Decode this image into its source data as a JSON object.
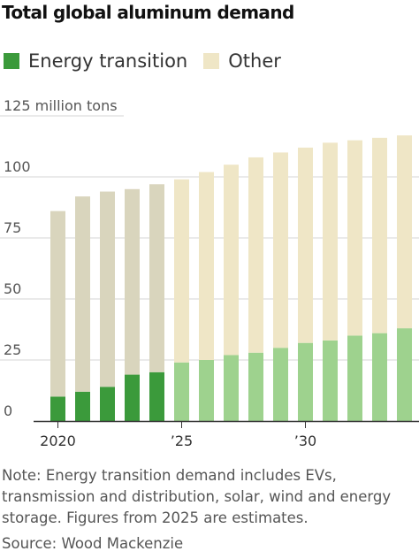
{
  "title": "Total global aluminum demand",
  "legend": {
    "energy_label": "Energy transition",
    "other_label": "Other"
  },
  "note": "Note: Energy transition demand includes EVs, transmission and distribution, solar, wind and energy storage. Figures from 2025 are estimates.",
  "source": "Source: Wood Mackenzie",
  "colors": {
    "energy_actual": "#3b9a3b",
    "energy_estimate": "#9ed28e",
    "other_actual": "#d9d5bd",
    "other_estimate": "#efe6c6",
    "gridline": "#d6d6d6",
    "axis": "#333333"
  },
  "chart_data": {
    "type": "bar",
    "stacked": true,
    "unit_label": "125 million tons",
    "categories": [
      2020,
      2021,
      2022,
      2023,
      2024,
      2025,
      2026,
      2027,
      2028,
      2029,
      2030,
      2031,
      2032,
      2033,
      2034
    ],
    "x_tick_labels": [
      {
        "category": 2020,
        "label": "2020"
      },
      {
        "category": 2025,
        "label": "’25"
      },
      {
        "category": 2030,
        "label": "’30"
      }
    ],
    "estimate_from": 2025,
    "series": [
      {
        "name": "Energy transition",
        "values": [
          10,
          12,
          14,
          19,
          20,
          24,
          25,
          27,
          28,
          30,
          32,
          33,
          35,
          36,
          38
        ]
      },
      {
        "name": "Other",
        "values": [
          76,
          80,
          80,
          76,
          77,
          75,
          77,
          78,
          80,
          80,
          80,
          81,
          80,
          80,
          79
        ]
      }
    ],
    "y_ticks": [
      0,
      25,
      50,
      75,
      100
    ],
    "ylim": [
      0,
      125
    ],
    "grid": true
  }
}
